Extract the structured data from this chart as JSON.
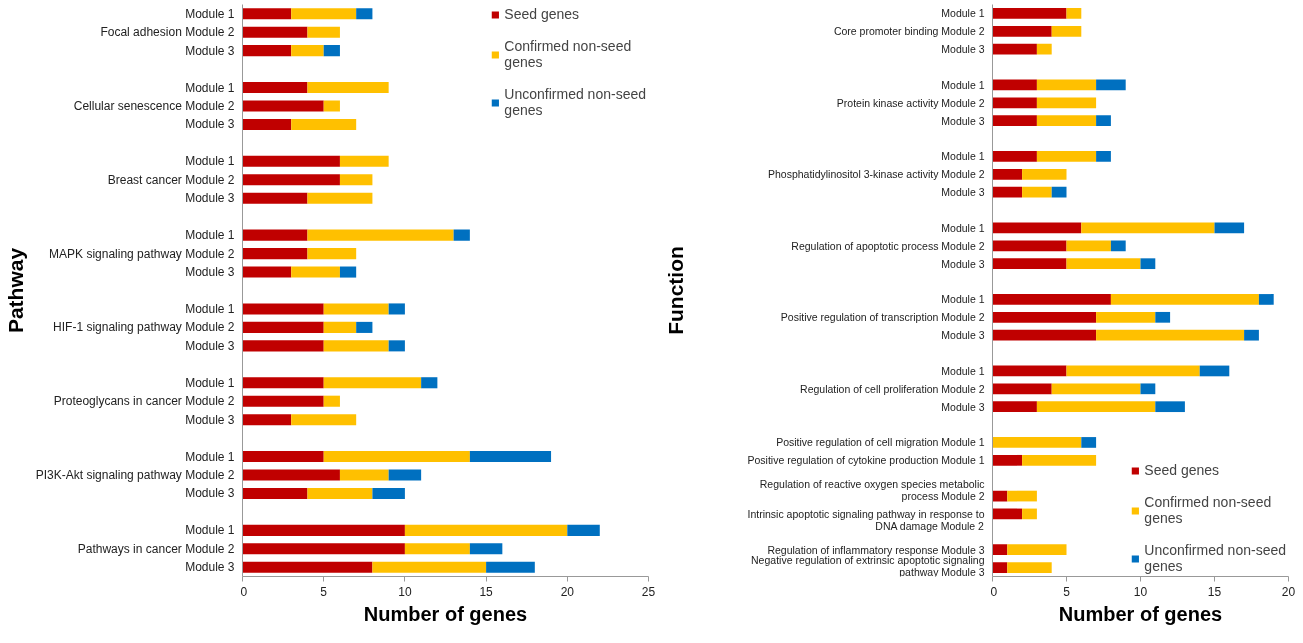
{
  "chart_data": [
    {
      "type": "bar",
      "orientation": "horizontal",
      "stacked": true,
      "xlabel": "Number of genes",
      "ylabel": "Pathway",
      "legend": "top right",
      "grid": false,
      "xlim": [
        0,
        25
      ],
      "xticks": [
        0,
        5,
        10,
        15,
        20,
        25
      ],
      "categories": [
        "Module 1",
        "Focal adhesion Module 2",
        "Module 3",
        null,
        "Module 1",
        "Cellular senescence Module 2",
        "Module 3",
        null,
        "Module 1",
        "Breast cancer Module 2",
        "Module 3",
        null,
        "Module 1",
        "MAPK signaling pathway Module 2",
        "Module 3",
        null,
        "Module 1",
        "HIF-1 signaling pathway Module 2",
        "Module 3",
        null,
        "Module 1",
        "Proteoglycans in cancer Module 2",
        "Module 3",
        null,
        "Module 1",
        "PI3K-Akt signaling pathway Module 2",
        "Module 3",
        null,
        "Module 1",
        "Pathways in cancer Module 2",
        "Module 3"
      ],
      "series": [
        {
          "name": "Seed genes",
          "color": "#c00000",
          "values": [
            3,
            4,
            3,
            null,
            4,
            5,
            3,
            null,
            6,
            6,
            4,
            null,
            4,
            4,
            3,
            null,
            5,
            5,
            5,
            null,
            5,
            5,
            3,
            null,
            5,
            6,
            4,
            null,
            10,
            10,
            8
          ]
        },
        {
          "name": "Confirmed non-seed genes",
          "color": "#ffc000",
          "values": [
            4,
            2,
            2,
            null,
            5,
            1,
            4,
            null,
            3,
            2,
            4,
            null,
            9,
            3,
            3,
            null,
            4,
            2,
            4,
            null,
            6,
            1,
            4,
            null,
            9,
            3,
            4,
            null,
            10,
            4,
            7
          ]
        },
        {
          "name": "Unconfirmed non-seed genes",
          "color": "#0070c0",
          "values": [
            1,
            0,
            1,
            null,
            0,
            0,
            0,
            null,
            0,
            0,
            0,
            null,
            1,
            0,
            1,
            null,
            1,
            1,
            1,
            null,
            1,
            0,
            0,
            null,
            5,
            2,
            2,
            null,
            2,
            2,
            3
          ]
        }
      ]
    },
    {
      "type": "bar",
      "orientation": "horizontal",
      "stacked": true,
      "xlabel": "Number of genes",
      "ylabel": "Function",
      "legend": "bottom right",
      "grid": false,
      "xlim": [
        0,
        20
      ],
      "xticks": [
        0,
        5,
        10,
        15,
        20
      ],
      "categories": [
        "Module 1",
        "Core promoter binding Module 2",
        "Module 3",
        null,
        "Module 1",
        "Protein kinase activity Module 2",
        "Module 3",
        null,
        "Module 1",
        "Phosphatidylinositol 3-kinase activity Module 2",
        "Module 3",
        null,
        "Module 1",
        "Regulation of apoptotic process Module 2",
        "Module 3",
        null,
        "Module 1",
        "Positive regulation of transcription Module 2",
        "Module 3",
        null,
        "Module 1",
        "Regulation of cell proliferation Module 2",
        "Module 3",
        null,
        "Positive regulation of cell migration Module 1",
        "Positive regulation of cytokine production Module 1",
        null,
        "Regulation of reactive oxygen species metabolic process Module 2",
        "Intrinsic apoptotic signaling pathway in response to DNA damage Module 2",
        null,
        "Regulation of inflammatory response Module 3",
        "Negative regulation of extrinsic apoptotic signaling pathway Module 3"
      ],
      "series": [
        {
          "name": "Seed genes",
          "color": "#c00000",
          "values": [
            5,
            4,
            3,
            null,
            3,
            3,
            3,
            null,
            3,
            2,
            2,
            null,
            6,
            5,
            5,
            null,
            8,
            7,
            7,
            null,
            5,
            4,
            3,
            null,
            0,
            2,
            null,
            1,
            2,
            null,
            1,
            1
          ]
        },
        {
          "name": "Confirmed non-seed genes",
          "color": "#ffc000",
          "values": [
            1,
            2,
            1,
            null,
            4,
            4,
            4,
            null,
            4,
            3,
            2,
            null,
            9,
            3,
            5,
            null,
            10,
            4,
            10,
            null,
            9,
            6,
            8,
            null,
            6,
            5,
            null,
            2,
            1,
            null,
            4,
            3
          ]
        },
        {
          "name": "Unconfirmed non-seed genes",
          "color": "#0070c0",
          "values": [
            0,
            0,
            0,
            null,
            2,
            0,
            1,
            null,
            1,
            0,
            1,
            null,
            2,
            1,
            1,
            null,
            1,
            1,
            1,
            null,
            2,
            1,
            2,
            null,
            1,
            0,
            null,
            0,
            0,
            null,
            0,
            0
          ]
        }
      ]
    }
  ]
}
